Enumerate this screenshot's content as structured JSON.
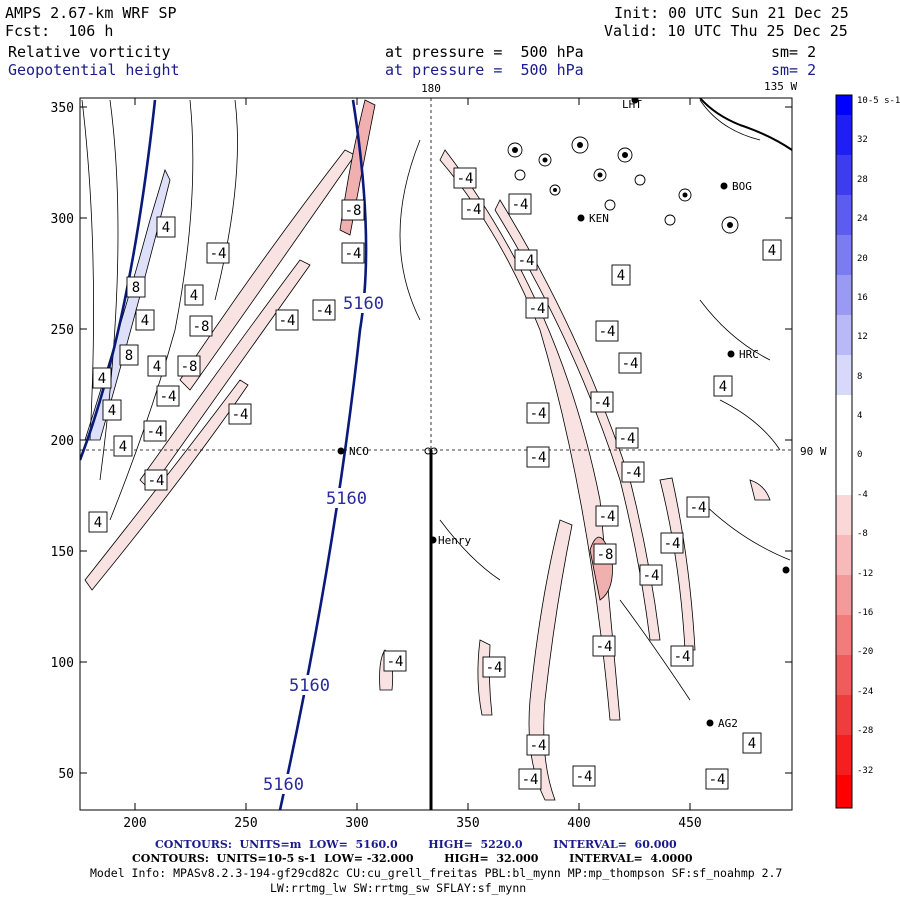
{
  "header": {
    "model": "AMPS 2.67-km WRF SP",
    "forecast": "Fcst:  106 h",
    "init": "Init: 00 UTC Sun 21 Dec 25",
    "valid": "Valid: 10 UTC Thu 25 Dec 25",
    "field1_name": "Relative vorticity",
    "field1_level": "at pressure =  500 hPa",
    "field1_smooth": "sm= 2",
    "field2_name": "Geopotential height",
    "field2_level": "at pressure =  500 hPa",
    "field2_smooth": "sm= 2"
  },
  "map": {
    "top_longitude_label": "180",
    "top_right_longitude_label": "135 W",
    "right_longitude_label": "90 W",
    "x_ticks": [
      "200",
      "250",
      "300",
      "350",
      "400",
      "450"
    ],
    "y_ticks": [
      "50",
      "100",
      "150",
      "200",
      "250",
      "300",
      "350"
    ],
    "stations": [
      "LHT",
      "KEN",
      "BOG",
      "HRC",
      "NCO",
      "Henry",
      "AG2"
    ],
    "height_contour_label": "5160",
    "vort_neg_label": "-4",
    "vort_neg8_label": "-8",
    "vort_pos_label": "4",
    "vort_pos8_label": "8",
    "colors": {
      "height_contour": "#0a1a7a",
      "contour_label": "#2a2a9c",
      "positive_fill": "#dde0f8",
      "negative_fill": "#f8e2e2",
      "negative_fill_strong": "#f0b0b0"
    }
  },
  "colorbar": {
    "unit_label": "10-5 s-1",
    "labels": [
      "32",
      "28",
      "24",
      "20",
      "16",
      "12",
      "8",
      "4",
      "0",
      "-4",
      "-8",
      "-12",
      "-16",
      "-20",
      "-24",
      "-28",
      "-32"
    ],
    "colors": [
      "#0000ff",
      "#1f1ff5",
      "#3d3def",
      "#5c5cf0",
      "#7b7bf2",
      "#9a9af5",
      "#b9b9f7",
      "#d8d8fa",
      "#ffffff",
      "#ffffff",
      "#fad8d8",
      "#f7b9b9",
      "#f59a9a",
      "#f27b7b",
      "#f05c5c",
      "#ef3d3d",
      "#f51f1f",
      "#ff0000"
    ]
  },
  "footer": {
    "line1_contours": "CONTOURS:  UNITS=m  LOW=  5160.0        HIGH=  5220.0        INTERVAL=  60.000",
    "line2_contours": "CONTOURS:  UNITS=10-5 s-1  LOW= -32.000        HIGH=  32.000        INTERVAL=  4.0000",
    "line3_model": "Model Info: MPASv8.2.3-194-gf29cd82c CU:cu_grell_freitas PBL:bl_mynn MP:mp_thompson SF:sf_noahmp 2.7",
    "line4_model": "LW:rrtmg_lw SW:rrtmg_sw SFLAY:sf_mynn"
  }
}
